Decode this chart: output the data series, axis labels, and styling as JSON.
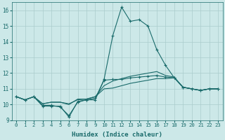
{
  "xlabel": "Humidex (Indice chaleur)",
  "bg_color": "#cce8e8",
  "grid_color": "#aacccc",
  "line_color": "#1a6b6b",
  "xlim": [
    -0.5,
    23.5
  ],
  "ylim": [
    9.0,
    16.5
  ],
  "yticks": [
    9,
    10,
    11,
    12,
    13,
    14,
    15,
    16
  ],
  "xticks": [
    0,
    1,
    2,
    3,
    4,
    5,
    6,
    7,
    8,
    9,
    10,
    11,
    12,
    13,
    14,
    15,
    16,
    17,
    18,
    19,
    20,
    21,
    22,
    23
  ],
  "series": [
    {
      "y": [
        10.5,
        10.3,
        10.5,
        9.9,
        9.9,
        9.9,
        9.2,
        10.2,
        10.3,
        10.3,
        11.6,
        14.4,
        16.2,
        15.3,
        15.4,
        15.0,
        13.5,
        12.5,
        11.7,
        11.1,
        11.0,
        10.9,
        11.0,
        11.0
      ],
      "marker": "+",
      "ms": 3.5,
      "lw": 0.8
    },
    {
      "y": [
        10.5,
        10.3,
        10.5,
        10.05,
        10.15,
        10.15,
        10.0,
        10.35,
        10.35,
        10.5,
        11.0,
        11.05,
        11.2,
        11.35,
        11.45,
        11.55,
        11.65,
        11.65,
        11.7,
        11.1,
        11.0,
        10.9,
        11.0,
        11.0
      ],
      "marker": null,
      "ms": null,
      "lw": 0.8
    },
    {
      "y": [
        10.5,
        10.3,
        10.5,
        10.05,
        10.15,
        10.15,
        10.05,
        10.3,
        10.35,
        10.5,
        11.2,
        11.5,
        11.65,
        11.8,
        11.9,
        12.0,
        12.1,
        11.85,
        11.75,
        11.1,
        11.0,
        10.9,
        11.0,
        11.0
      ],
      "marker": null,
      "ms": null,
      "lw": 0.8
    },
    {
      "y": [
        10.5,
        10.3,
        10.5,
        9.95,
        9.95,
        9.85,
        9.3,
        10.15,
        10.3,
        10.4,
        11.55,
        11.6,
        11.6,
        11.7,
        11.75,
        11.8,
        11.85,
        11.75,
        11.7,
        11.1,
        11.0,
        10.9,
        11.0,
        11.0
      ],
      "marker": "+",
      "ms": 3.5,
      "lw": 0.8
    }
  ]
}
